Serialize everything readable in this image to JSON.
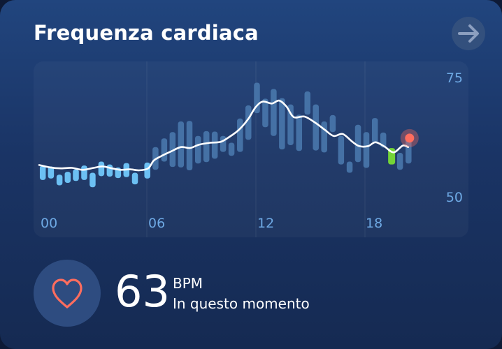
{
  "header": {
    "title": "Frequenza cardiaca",
    "nav_icon": "arrow-right-icon"
  },
  "chart_data": {
    "type": "bar",
    "x_tick_labels": [
      "00",
      "06",
      "12",
      "18"
    ],
    "y_tick_labels": [
      "75",
      "50"
    ],
    "ylim": [
      45,
      80
    ],
    "xlim": [
      0,
      24
    ],
    "colors": {
      "past_bars": "#6cc0f3",
      "range_bars": "#4a79ad",
      "current_bar": "#74d437",
      "trend_line": "#ffffff",
      "current_point": "#ff6d5e"
    },
    "bars": [
      {
        "t": 0.2,
        "lo": 51.2,
        "hi": 54.2,
        "style": "past"
      },
      {
        "t": 0.65,
        "lo": 51.5,
        "hi": 54.0,
        "style": "past"
      },
      {
        "t": 1.12,
        "lo": 50.1,
        "hi": 52.3,
        "style": "past"
      },
      {
        "t": 1.57,
        "lo": 50.6,
        "hi": 52.9,
        "style": "past"
      },
      {
        "t": 2.02,
        "lo": 51.0,
        "hi": 53.4,
        "style": "past"
      },
      {
        "t": 2.48,
        "lo": 51.2,
        "hi": 54.2,
        "style": "past"
      },
      {
        "t": 2.94,
        "lo": 49.7,
        "hi": 52.7,
        "style": "past"
      },
      {
        "t": 3.42,
        "lo": 52.0,
        "hi": 55.0,
        "style": "past"
      },
      {
        "t": 3.88,
        "lo": 51.9,
        "hi": 54.4,
        "style": "past"
      },
      {
        "t": 4.34,
        "lo": 51.6,
        "hi": 53.8,
        "style": "past"
      },
      {
        "t": 4.8,
        "lo": 51.8,
        "hi": 54.7,
        "style": "past"
      },
      {
        "t": 5.27,
        "lo": 50.3,
        "hi": 52.7,
        "style": "past"
      },
      {
        "t": 5.95,
        "lo": 51.5,
        "hi": 54.8,
        "style": "past"
      },
      {
        "t": 6.4,
        "lo": 53.3,
        "hi": 58.0,
        "style": "range"
      },
      {
        "t": 6.88,
        "lo": 55.0,
        "hi": 59.8,
        "style": "range"
      },
      {
        "t": 7.34,
        "lo": 53.9,
        "hi": 61.1,
        "style": "range"
      },
      {
        "t": 7.8,
        "lo": 53.8,
        "hi": 63.3,
        "style": "range"
      },
      {
        "t": 8.27,
        "lo": 53.2,
        "hi": 63.4,
        "style": "range"
      },
      {
        "t": 8.74,
        "lo": 54.6,
        "hi": 60.3,
        "style": "range"
      },
      {
        "t": 9.2,
        "lo": 54.9,
        "hi": 61.3,
        "style": "range"
      },
      {
        "t": 9.66,
        "lo": 55.6,
        "hi": 61.2,
        "style": "range"
      },
      {
        "t": 10.12,
        "lo": 57.0,
        "hi": 60.3,
        "style": "range"
      },
      {
        "t": 10.58,
        "lo": 56.2,
        "hi": 58.9,
        "style": "range"
      },
      {
        "t": 11.05,
        "lo": 57.0,
        "hi": 63.9,
        "style": "range"
      },
      {
        "t": 11.51,
        "lo": 59.5,
        "hi": 66.6,
        "style": "range"
      },
      {
        "t": 11.98,
        "lo": 65.0,
        "hi": 71.3,
        "style": "range"
      },
      {
        "t": 12.44,
        "lo": 62.1,
        "hi": 68.0,
        "style": "range"
      },
      {
        "t": 12.9,
        "lo": 60.3,
        "hi": 70.0,
        "style": "range"
      },
      {
        "t": 13.36,
        "lo": 57.5,
        "hi": 68.1,
        "style": "range"
      },
      {
        "t": 13.83,
        "lo": 58.4,
        "hi": 66.8,
        "style": "range"
      },
      {
        "t": 14.3,
        "lo": 57.2,
        "hi": 64.7,
        "style": "range"
      },
      {
        "t": 14.76,
        "lo": 64.7,
        "hi": 69.5,
        "style": "range"
      },
      {
        "t": 15.22,
        "lo": 57.3,
        "hi": 66.8,
        "style": "range"
      },
      {
        "t": 15.68,
        "lo": 56.9,
        "hi": 63.3,
        "style": "range"
      },
      {
        "t": 16.15,
        "lo": 61.1,
        "hi": 64.6,
        "style": "range"
      },
      {
        "t": 16.61,
        "lo": 54.4,
        "hi": 60.3,
        "style": "range"
      },
      {
        "t": 17.08,
        "lo": 52.7,
        "hi": 55.0,
        "style": "range"
      },
      {
        "t": 17.54,
        "lo": 54.9,
        "hi": 62.6,
        "style": "range"
      },
      {
        "t": 18.0,
        "lo": 53.7,
        "hi": 61.1,
        "style": "range"
      },
      {
        "t": 18.47,
        "lo": 58.9,
        "hi": 64.0,
        "style": "range"
      },
      {
        "t": 18.93,
        "lo": 57.9,
        "hi": 61.0,
        "style": "range"
      },
      {
        "t": 19.39,
        "lo": 54.4,
        "hi": 57.8,
        "style": "current"
      },
      {
        "t": 19.85,
        "lo": 53.3,
        "hi": 56.8,
        "style": "range"
      },
      {
        "t": 20.32,
        "lo": 54.6,
        "hi": 60.0,
        "style": "range"
      }
    ],
    "trend": [
      [
        0.0,
        54.3
      ],
      [
        0.6,
        53.8
      ],
      [
        1.2,
        53.6
      ],
      [
        1.8,
        53.7
      ],
      [
        2.4,
        53.3
      ],
      [
        3.0,
        53.7
      ],
      [
        3.5,
        54.0
      ],
      [
        4.0,
        53.6
      ],
      [
        4.5,
        53.3
      ],
      [
        5.0,
        53.4
      ],
      [
        5.5,
        53.2
      ],
      [
        6.0,
        53.6
      ],
      [
        6.3,
        55.2
      ],
      [
        6.7,
        56.1
      ],
      [
        7.2,
        57.0
      ],
      [
        7.8,
        58.0
      ],
      [
        8.3,
        57.8
      ],
      [
        8.8,
        58.5
      ],
      [
        9.4,
        58.9
      ],
      [
        10.0,
        59.1
      ],
      [
        10.5,
        60.2
      ],
      [
        11.0,
        61.6
      ],
      [
        11.5,
        63.8
      ],
      [
        11.9,
        66.2
      ],
      [
        12.3,
        67.4
      ],
      [
        12.8,
        67.0
      ],
      [
        13.2,
        67.6
      ],
      [
        13.6,
        66.4
      ],
      [
        14.0,
        64.2
      ],
      [
        14.6,
        64.3
      ],
      [
        15.2,
        63.0
      ],
      [
        15.7,
        61.6
      ],
      [
        16.2,
        60.3
      ],
      [
        16.7,
        60.7
      ],
      [
        17.2,
        59.2
      ],
      [
        17.6,
        58.2
      ],
      [
        18.1,
        58.2
      ],
      [
        18.5,
        59.0
      ],
      [
        19.0,
        58.1
      ],
      [
        19.5,
        56.9
      ],
      [
        20.0,
        58.3
      ],
      [
        20.3,
        58.0
      ]
    ],
    "current_point": {
      "t": 20.3,
      "value": 60.0
    },
    "grid": "vertical"
  },
  "reading": {
    "value": "63",
    "unit": "BPM",
    "caption": "In questo momento",
    "icon": "heart-icon"
  }
}
